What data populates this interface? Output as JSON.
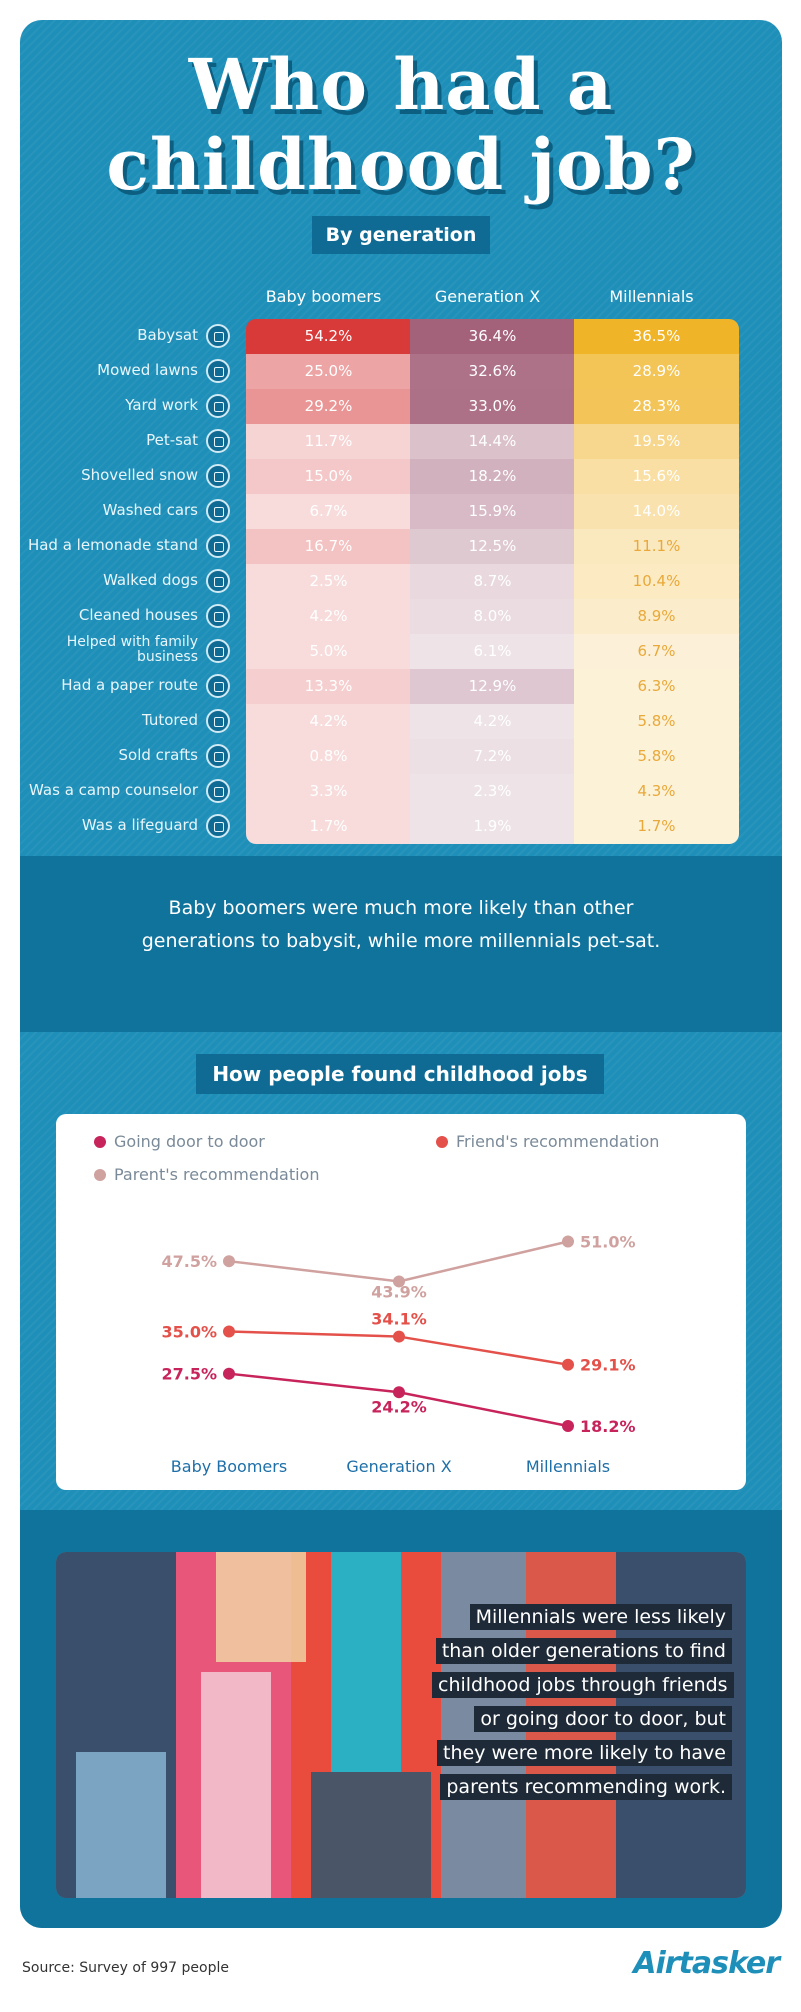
{
  "header": {
    "title_line1": "Who had a",
    "title_line2": "childhood job?",
    "subtitle": "By generation"
  },
  "table": {
    "columns": [
      "Baby boomers",
      "Generation X",
      "Millennials"
    ],
    "rows": [
      {
        "label": "Babysat",
        "icon": "stroller-icon",
        "values": [
          "54.2%",
          "36.4%",
          "36.5%"
        ]
      },
      {
        "label": "Mowed lawns",
        "icon": "lawnmower-icon",
        "values": [
          "25.0%",
          "32.6%",
          "28.9%"
        ]
      },
      {
        "label": "Yard work",
        "icon": "rake-icon",
        "values": [
          "29.2%",
          "33.0%",
          "28.3%"
        ]
      },
      {
        "label": "Pet-sat",
        "icon": "pet-icon",
        "values": [
          "11.7%",
          "14.4%",
          "19.5%"
        ]
      },
      {
        "label": "Shovelled snow",
        "icon": "shovel-icon",
        "values": [
          "15.0%",
          "18.2%",
          "15.6%"
        ]
      },
      {
        "label": "Washed cars",
        "icon": "bucket-icon",
        "values": [
          "6.7%",
          "15.9%",
          "14.0%"
        ]
      },
      {
        "label": "Had a lemonade stand",
        "icon": "lemonade-icon",
        "values": [
          "16.7%",
          "12.5%",
          "11.1%"
        ]
      },
      {
        "label": "Walked dogs",
        "icon": "dog-icon",
        "values": [
          "2.5%",
          "8.7%",
          "10.4%"
        ]
      },
      {
        "label": "Cleaned houses",
        "icon": "spray-bottle-icon",
        "values": [
          "4.2%",
          "8.0%",
          "8.9%"
        ]
      },
      {
        "label": "Helped with family business",
        "icon": "family-icon",
        "values": [
          "5.0%",
          "6.1%",
          "6.7%"
        ]
      },
      {
        "label": "Had a paper route",
        "icon": "newspaper-icon",
        "values": [
          "13.3%",
          "12.9%",
          "6.3%"
        ]
      },
      {
        "label": "Tutored",
        "icon": "globe-icon",
        "values": [
          "4.2%",
          "4.2%",
          "5.8%"
        ]
      },
      {
        "label": "Sold crafts",
        "icon": "shop-icon",
        "values": [
          "0.8%",
          "7.2%",
          "5.8%"
        ]
      },
      {
        "label": "Was a camp counselor",
        "icon": "backpack-icon",
        "values": [
          "3.3%",
          "2.3%",
          "4.3%"
        ]
      },
      {
        "label": "Was a lifeguard",
        "icon": "lifeguard-icon",
        "values": [
          "1.7%",
          "1.9%",
          "1.7%"
        ]
      }
    ],
    "column_colors": [
      "#d83a3a",
      "#a3627a",
      "#f0b429"
    ]
  },
  "insight1": "Baby boomers were much more likely than other generations to babysit, while more millennials pet-sat.",
  "chart_heading": "How people found childhood jobs",
  "chart_data": {
    "type": "line",
    "categories": [
      "Baby Boomers",
      "Generation X",
      "Millennials"
    ],
    "series": [
      {
        "name": "Going door to door",
        "color": "#c8245c",
        "values": [
          27.5,
          24.2,
          18.2
        ],
        "labels": [
          "27.5%",
          "24.2%",
          "18.2%"
        ]
      },
      {
        "name": "Friend's recommendation",
        "color": "#e3514a",
        "values": [
          35.0,
          34.1,
          29.1
        ],
        "labels": [
          "35.0%",
          "34.1%",
          "29.1%"
        ]
      },
      {
        "name": "Parent's recommendation",
        "color": "#cfa19f",
        "values": [
          47.5,
          43.9,
          51.0
        ],
        "labels": [
          "47.5%",
          "43.9%",
          "51.0%"
        ]
      }
    ],
    "ylim": [
      15,
      55
    ],
    "grid": false,
    "legend_placement": "top"
  },
  "insight2": "Millennials were less likely than older generations to find childhood jobs through friends or going door to door, but they were more likely to have parents recommending work.",
  "footer": {
    "source": "Source: Survey of 997 people",
    "logo": "Airtasker"
  }
}
